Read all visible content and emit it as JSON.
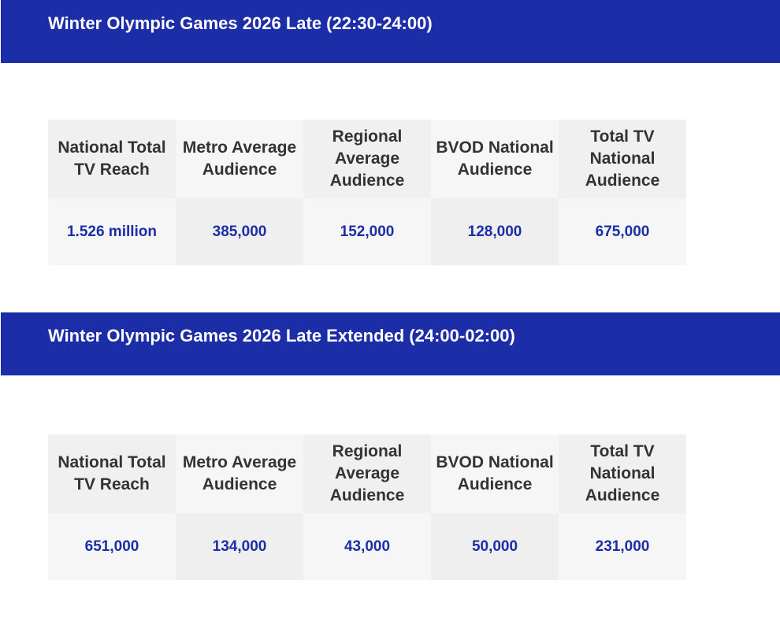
{
  "sections": [
    {
      "title": "Winter Olympic Games 2026 Late (22:30-24:00)",
      "columns": [
        {
          "header": "National Total TV Reach",
          "value": "1.526 million"
        },
        {
          "header": "Metro Average Audience",
          "value": "385,000"
        },
        {
          "header": "Regional Average Audience",
          "value": "152,000"
        },
        {
          "header": "BVOD National Audience",
          "value": "128,000"
        },
        {
          "header": "Total TV National Audience",
          "value": "675,000"
        }
      ]
    },
    {
      "title": "Winter Olympic Games 2026 Late Extended (24:00-02:00)",
      "columns": [
        {
          "header": "National Total TV Reach",
          "value": "651,000"
        },
        {
          "header": "Metro Average Audience",
          "value": "134,000"
        },
        {
          "header": "Regional Average Audience",
          "value": "43,000"
        },
        {
          "header": "BVOD National Audience",
          "value": "50,000"
        },
        {
          "header": "Total TV National Audience",
          "value": "231,000"
        }
      ]
    }
  ],
  "colors": {
    "header_bar": "#1b2ea8",
    "value_text": "#1b2ea8",
    "header_text": "#333333"
  }
}
